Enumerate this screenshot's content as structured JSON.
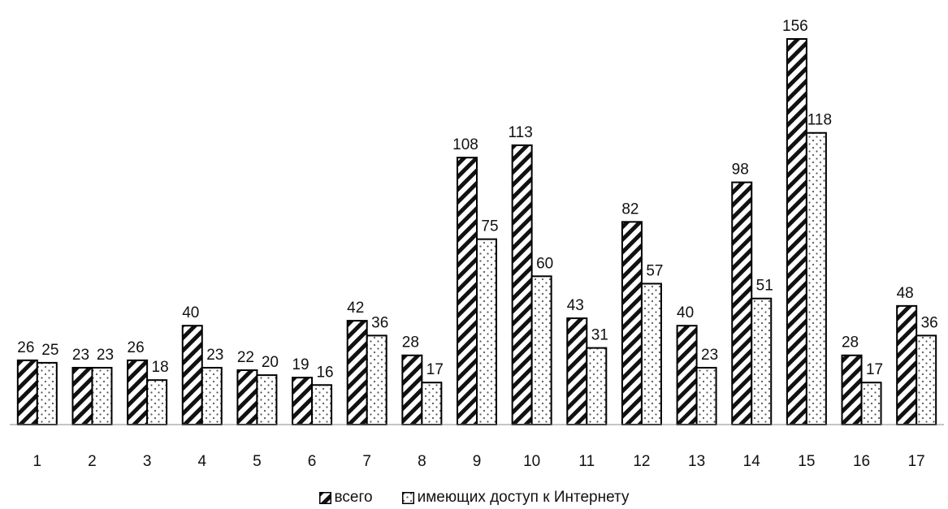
{
  "chart_data": {
    "type": "bar",
    "categories": [
      "1",
      "2",
      "3",
      "4",
      "5",
      "6",
      "7",
      "8",
      "9",
      "10",
      "11",
      "12",
      "13",
      "14",
      "15",
      "16",
      "17"
    ],
    "series": [
      {
        "name": "всего",
        "values": [
          26,
          23,
          26,
          40,
          22,
          19,
          42,
          28,
          108,
          113,
          43,
          82,
          40,
          98,
          156,
          28,
          48
        ],
        "fill": "diagonal-hatch",
        "color": "#000000"
      },
      {
        "name": "имеющих доступ к Интернету",
        "values": [
          25,
          23,
          18,
          23,
          20,
          16,
          36,
          17,
          75,
          60,
          31,
          57,
          23,
          51,
          118,
          17,
          36
        ],
        "fill": "dotted",
        "color": "#000000"
      }
    ],
    "ylim": [
      0,
      160
    ],
    "grid": false,
    "data_labels": true,
    "legend": "bottom"
  }
}
